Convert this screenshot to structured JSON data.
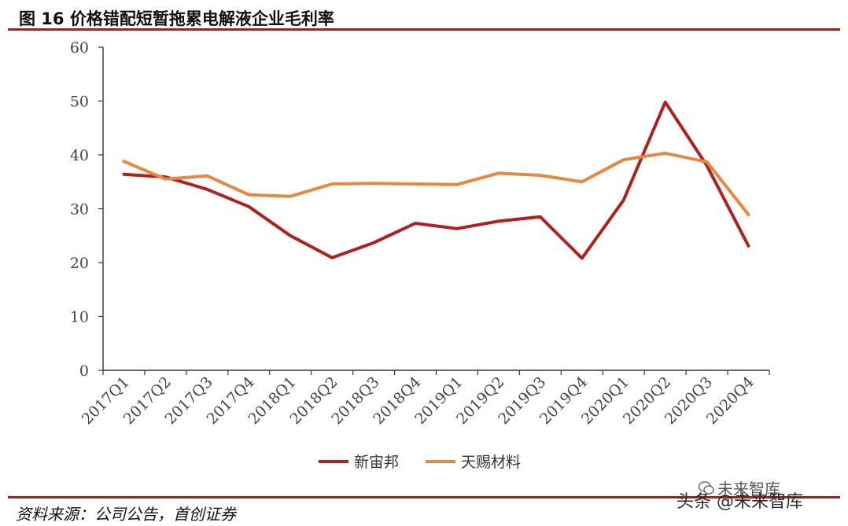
{
  "header": {
    "title": "图 16 价格错配短暂拖累电解液企业毛利率"
  },
  "footer": {
    "source": "资料来源：公司公告，首创证券",
    "watermark_top": "未来智库",
    "watermark": "头条 @未来智库"
  },
  "colors": {
    "rule": "#a8201a",
    "series1": "#b21f1c",
    "series2": "#e8883f"
  },
  "chart_data": {
    "type": "line",
    "categories": [
      "2017Q1",
      "2017Q2",
      "2017Q3",
      "2017Q4",
      "2018Q1",
      "2018Q2",
      "2018Q3",
      "2018Q4",
      "2019Q1",
      "2019Q2",
      "2019Q3",
      "2019Q4",
      "2020Q1",
      "2020Q2",
      "2020Q3",
      "2020Q4"
    ],
    "ylim": [
      0,
      60
    ],
    "yticks": [
      0,
      10,
      20,
      30,
      40,
      50,
      60
    ],
    "grid": false,
    "legend": "bottom",
    "series": [
      {
        "name": "新宙邦",
        "color": "#b21f1c",
        "values": [
          36.4,
          35.9,
          33.6,
          30.4,
          25.0,
          20.9,
          23.7,
          27.3,
          26.3,
          27.7,
          28.5,
          20.8,
          31.6,
          49.8,
          38.0,
          23.1
        ]
      },
      {
        "name": "天赐材料",
        "color": "#e8883f",
        "values": [
          38.8,
          35.5,
          36.1,
          32.6,
          32.3,
          34.6,
          34.7,
          34.6,
          34.5,
          36.6,
          36.2,
          35.0,
          39.1,
          40.3,
          38.7,
          28.9
        ]
      }
    ]
  }
}
